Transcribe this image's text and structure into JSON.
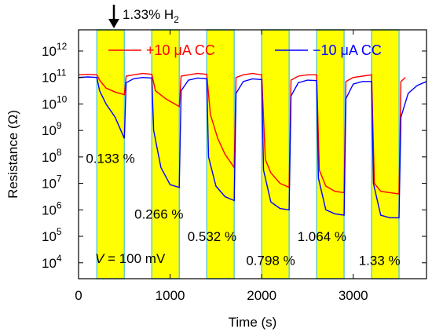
{
  "chart_data": {
    "type": "line",
    "title": "",
    "xlabel": "Time (s)",
    "ylabel": "Resistance (Ω)",
    "xlim": [
      0,
      3800
    ],
    "ylim_log10": [
      3.4,
      12.8
    ],
    "x_ticks": [
      {
        "value": 0,
        "label": "0"
      },
      {
        "value": 1000,
        "label": "1000"
      },
      {
        "value": 2000,
        "label": "2000"
      },
      {
        "value": 3000,
        "label": "3000"
      }
    ],
    "y_ticks": [
      {
        "exp": 4,
        "base": "10",
        "sup": "4"
      },
      {
        "exp": 5,
        "base": "10",
        "sup": "5"
      },
      {
        "exp": 6,
        "base": "10",
        "sup": "6"
      },
      {
        "exp": 7,
        "base": "10",
        "sup": "7"
      },
      {
        "exp": 8,
        "base": "10",
        "sup": "8"
      },
      {
        "exp": 9,
        "base": "10",
        "sup": "9"
      },
      {
        "exp": 10,
        "base": "10",
        "sup": "10"
      },
      {
        "exp": 11,
        "base": "10",
        "sup": "11"
      },
      {
        "exp": 12,
        "base": "10",
        "sup": "12"
      }
    ],
    "h2_pulses": [
      {
        "start": 200,
        "end": 500,
        "label": "0.133 %",
        "label_x": 80,
        "label_log": 7.95
      },
      {
        "start": 800,
        "end": 1100,
        "label": "0.266 %",
        "label_x": 610,
        "label_log": 5.85
      },
      {
        "start": 1400,
        "end": 1700,
        "label": "0.532 %",
        "label_x": 1190,
        "label_log": 5.0
      },
      {
        "start": 2000,
        "end": 2300,
        "label": "0.798 %",
        "label_x": 1830,
        "label_log": 4.1
      },
      {
        "start": 2600,
        "end": 2900,
        "label": "1.064 %",
        "label_x": 2390,
        "label_log": 5.0
      },
      {
        "start": 3200,
        "end": 3500,
        "label": "1.33 %",
        "label_x": 3060,
        "label_log": 4.1
      }
    ],
    "series": [
      {
        "name": "+10 μA CC",
        "color": "#ff0000",
        "points": [
          [
            0,
            11.1
          ],
          [
            100,
            11.12
          ],
          [
            200,
            11.1
          ],
          [
            230,
            10.9
          ],
          [
            300,
            10.6
          ],
          [
            400,
            10.45
          ],
          [
            500,
            10.35
          ],
          [
            520,
            11.05
          ],
          [
            600,
            11.1
          ],
          [
            700,
            11.15
          ],
          [
            800,
            11.12
          ],
          [
            840,
            10.5
          ],
          [
            950,
            10.2
          ],
          [
            1050,
            10.0
          ],
          [
            1100,
            9.9
          ],
          [
            1120,
            11.05
          ],
          [
            1200,
            11.1
          ],
          [
            1300,
            11.15
          ],
          [
            1400,
            11.12
          ],
          [
            1440,
            9.6
          ],
          [
            1520,
            8.7
          ],
          [
            1600,
            8.1
          ],
          [
            1700,
            7.6
          ],
          [
            1720,
            11.0
          ],
          [
            1800,
            11.1
          ],
          [
            1900,
            11.15
          ],
          [
            2000,
            11.1
          ],
          [
            2040,
            7.9
          ],
          [
            2100,
            7.4
          ],
          [
            2200,
            7.0
          ],
          [
            2300,
            6.85
          ],
          [
            2320,
            10.9
          ],
          [
            2400,
            11.05
          ],
          [
            2500,
            11.1
          ],
          [
            2600,
            11.1
          ],
          [
            2630,
            7.5
          ],
          [
            2700,
            6.9
          ],
          [
            2800,
            6.7
          ],
          [
            2900,
            6.65
          ],
          [
            2920,
            10.85
          ],
          [
            3000,
            11.0
          ],
          [
            3100,
            11.05
          ],
          [
            3200,
            11.1
          ],
          [
            3230,
            7.0
          ],
          [
            3300,
            6.7
          ],
          [
            3400,
            6.65
          ],
          [
            3500,
            6.6
          ],
          [
            3520,
            10.85
          ],
          [
            3570,
            11.0
          ]
        ]
      },
      {
        "name": "−10 μA CC",
        "color": "#0000ff",
        "points": [
          [
            0,
            11.0
          ],
          [
            100,
            11.02
          ],
          [
            200,
            11.0
          ],
          [
            230,
            10.5
          ],
          [
            300,
            10.0
          ],
          [
            400,
            9.5
          ],
          [
            500,
            8.7
          ],
          [
            520,
            10.8
          ],
          [
            600,
            10.95
          ],
          [
            700,
            11.0
          ],
          [
            800,
            10.98
          ],
          [
            820,
            9.0
          ],
          [
            900,
            7.6
          ],
          [
            1000,
            6.95
          ],
          [
            1100,
            6.85
          ],
          [
            1120,
            10.5
          ],
          [
            1200,
            10.9
          ],
          [
            1300,
            10.98
          ],
          [
            1400,
            10.95
          ],
          [
            1420,
            8.0
          ],
          [
            1500,
            6.9
          ],
          [
            1600,
            6.5
          ],
          [
            1700,
            6.35
          ],
          [
            1720,
            10.4
          ],
          [
            1800,
            10.85
          ],
          [
            1900,
            10.95
          ],
          [
            2000,
            10.92
          ],
          [
            2020,
            7.5
          ],
          [
            2100,
            6.3
          ],
          [
            2200,
            6.05
          ],
          [
            2300,
            6.0
          ],
          [
            2320,
            10.3
          ],
          [
            2400,
            10.8
          ],
          [
            2500,
            10.9
          ],
          [
            2600,
            10.88
          ],
          [
            2620,
            7.2
          ],
          [
            2700,
            6.0
          ],
          [
            2800,
            5.85
          ],
          [
            2900,
            5.8
          ],
          [
            2920,
            10.2
          ],
          [
            3000,
            10.75
          ],
          [
            3100,
            10.85
          ],
          [
            3200,
            10.85
          ],
          [
            3220,
            7.0
          ],
          [
            3300,
            5.8
          ],
          [
            3400,
            5.7
          ],
          [
            3500,
            5.7
          ],
          [
            3520,
            9.5
          ],
          [
            3600,
            10.4
          ],
          [
            3700,
            10.7
          ],
          [
            3800,
            10.85
          ]
        ]
      }
    ],
    "legend": [
      {
        "label": "+10 μA CC",
        "color": "#ff0000",
        "position": "top-left"
      },
      {
        "label": "−10 μA CC",
        "color": "#0000ff",
        "position": "top-right"
      }
    ],
    "annotations": {
      "h2_arrow": {
        "prefix": "1.33% H",
        "subscript": "2"
      },
      "bias_note": {
        "italic": "V",
        "rest": " = 100 mV"
      }
    },
    "colors": {
      "pulse_fill": "#ffff00",
      "pulse_edge": "#66cccc"
    }
  }
}
